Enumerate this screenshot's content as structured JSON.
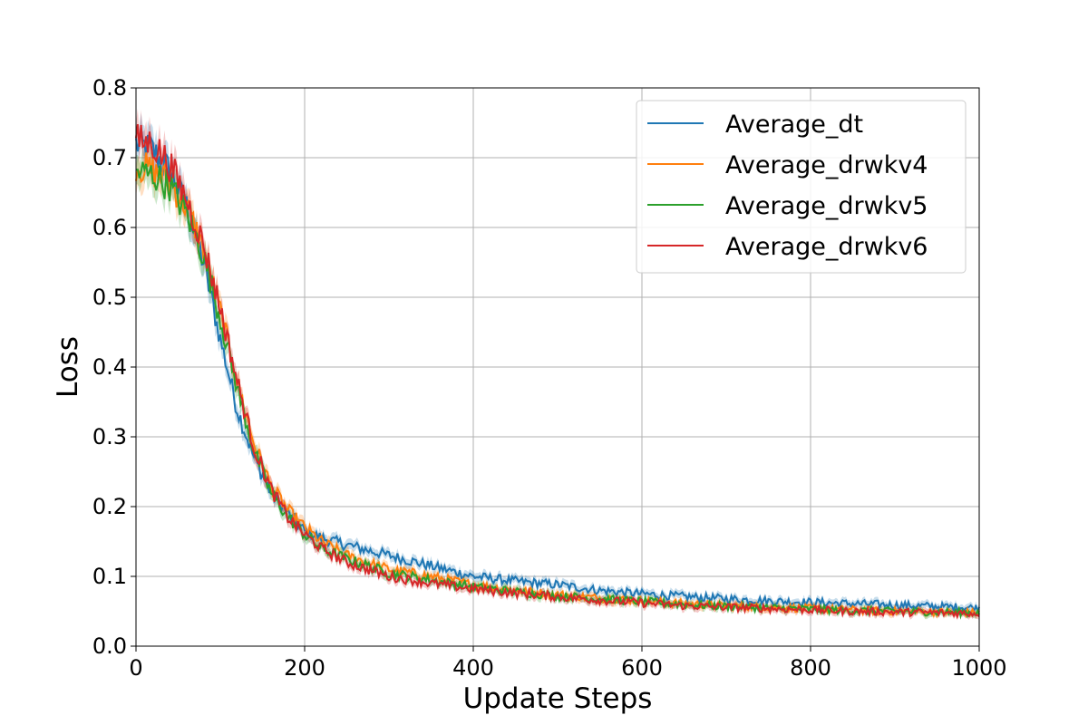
{
  "chart_data": {
    "type": "line",
    "title": "",
    "xlabel": "Update Steps",
    "ylabel": "Loss",
    "xlim": [
      0,
      1000
    ],
    "ylim": [
      0,
      0.8
    ],
    "xticks": [
      0,
      200,
      400,
      600,
      800,
      1000
    ],
    "yticks": [
      0.0,
      0.1,
      0.2,
      0.3,
      0.4,
      0.5,
      0.6,
      0.7,
      0.8
    ],
    "xtick_labels": [
      "0",
      "200",
      "400",
      "600",
      "800",
      "1000"
    ],
    "ytick_labels": [
      "0.0",
      "0.1",
      "0.2",
      "0.3",
      "0.4",
      "0.5",
      "0.6",
      "0.7",
      "0.8"
    ],
    "grid": true,
    "legend_position": "top-right",
    "shaded_band": true,
    "x": [
      0,
      20,
      40,
      60,
      80,
      100,
      120,
      140,
      160,
      180,
      200,
      220,
      250,
      300,
      350,
      400,
      450,
      500,
      550,
      600,
      650,
      700,
      750,
      800,
      850,
      900,
      950,
      1000
    ],
    "series": [
      {
        "name": "Average_dt",
        "color": "#1f77b4",
        "values": [
          0.72,
          0.71,
          0.68,
          0.63,
          0.55,
          0.44,
          0.34,
          0.27,
          0.22,
          0.19,
          0.165,
          0.155,
          0.145,
          0.13,
          0.115,
          0.1,
          0.093,
          0.088,
          0.08,
          0.075,
          0.071,
          0.068,
          0.065,
          0.063,
          0.061,
          0.059,
          0.057,
          0.055
        ]
      },
      {
        "name": "Average_drwkv4",
        "color": "#ff7f0e",
        "values": [
          0.69,
          0.68,
          0.665,
          0.63,
          0.57,
          0.48,
          0.38,
          0.29,
          0.23,
          0.195,
          0.17,
          0.15,
          0.13,
          0.11,
          0.1,
          0.088,
          0.08,
          0.074,
          0.069,
          0.065,
          0.061,
          0.058,
          0.056,
          0.054,
          0.052,
          0.05,
          0.049,
          0.048
        ]
      },
      {
        "name": "Average_drwkv5",
        "color": "#2ca02c",
        "values": [
          0.68,
          0.675,
          0.66,
          0.62,
          0.56,
          0.47,
          0.37,
          0.28,
          0.22,
          0.185,
          0.16,
          0.14,
          0.125,
          0.105,
          0.095,
          0.085,
          0.078,
          0.072,
          0.068,
          0.064,
          0.06,
          0.057,
          0.055,
          0.053,
          0.051,
          0.05,
          0.049,
          0.048
        ]
      },
      {
        "name": "Average_drwkv6",
        "color": "#d62728",
        "values": [
          0.725,
          0.72,
          0.69,
          0.64,
          0.575,
          0.485,
          0.38,
          0.285,
          0.225,
          0.185,
          0.16,
          0.14,
          0.12,
          0.1,
          0.09,
          0.082,
          0.076,
          0.071,
          0.066,
          0.062,
          0.058,
          0.056,
          0.054,
          0.052,
          0.05,
          0.049,
          0.048,
          0.047
        ]
      }
    ]
  }
}
